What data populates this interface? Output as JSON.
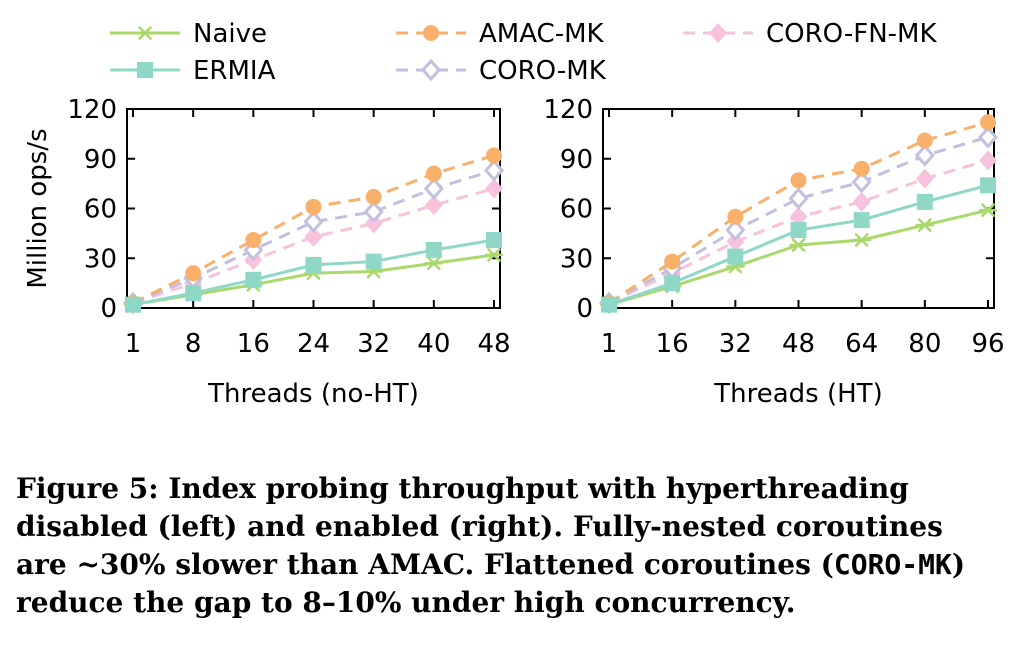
{
  "chart_data": [
    {
      "type": "line",
      "xlabel": "Threads (no-HT)",
      "ylabel": "Million ops/s",
      "x": [
        "1",
        "8",
        "16",
        "24",
        "32",
        "40",
        "48"
      ],
      "ylim": [
        0,
        120
      ],
      "yticks": [
        0,
        30,
        60,
        90,
        120
      ],
      "series": [
        {
          "name": "Naive",
          "values": [
            2,
            8,
            14,
            21,
            22,
            27,
            32
          ]
        },
        {
          "name": "ERMIA",
          "values": [
            2,
            9,
            17,
            26,
            28,
            35,
            41
          ]
        },
        {
          "name": "AMAC-MK",
          "values": [
            3,
            21,
            41,
            61,
            67,
            81,
            92
          ]
        },
        {
          "name": "CORO-MK",
          "values": [
            3,
            18,
            35,
            52,
            58,
            72,
            83
          ]
        },
        {
          "name": "CORO-FN-MK",
          "values": [
            3,
            15,
            29,
            43,
            51,
            62,
            72
          ]
        }
      ]
    },
    {
      "type": "line",
      "xlabel": "Threads (HT)",
      "ylabel": "",
      "x": [
        "1",
        "16",
        "32",
        "48",
        "64",
        "80",
        "96"
      ],
      "ylim": [
        0,
        120
      ],
      "yticks": [
        0,
        30,
        60,
        90,
        120
      ],
      "series": [
        {
          "name": "Naive",
          "values": [
            2,
            13,
            25,
            38,
            41,
            50,
            59
          ]
        },
        {
          "name": "ERMIA",
          "values": [
            2,
            15,
            31,
            47,
            53,
            64,
            74
          ]
        },
        {
          "name": "AMAC-MK",
          "values": [
            3,
            28,
            55,
            77,
            84,
            101,
            112
          ]
        },
        {
          "name": "CORO-MK",
          "values": [
            3,
            24,
            47,
            66,
            76,
            92,
            103
          ]
        },
        {
          "name": "CORO-FN-MK",
          "values": [
            3,
            21,
            40,
            55,
            64,
            78,
            89
          ]
        }
      ]
    }
  ],
  "legend": [
    {
      "name": "Naive",
      "color": "#a9d96a",
      "dash": false,
      "marker": "asterisk"
    },
    {
      "name": "ERMIA",
      "color": "#8fd8c8",
      "dash": false,
      "marker": "square"
    },
    {
      "name": "AMAC-MK",
      "color": "#f9b06a",
      "dash": true,
      "marker": "circle"
    },
    {
      "name": "CORO-MK",
      "color": "#c2bfdf",
      "dash": true,
      "marker": "diamond-open"
    },
    {
      "name": "CORO-FN-MK",
      "color": "#f7c3dc",
      "dash": true,
      "marker": "diamond"
    }
  ],
  "caption": {
    "line1": "Figure 5: Index probing throughput with hyperthreading",
    "line2": "disabled (left) and enabled (right). Fully-nested coroutines",
    "line3": "are ~30% slower than AMAC. Flattened coroutines (",
    "line3_code": "CORO-MK",
    "line3_end": ")",
    "line4": "reduce the gap to 8–10% under high concurrency."
  }
}
